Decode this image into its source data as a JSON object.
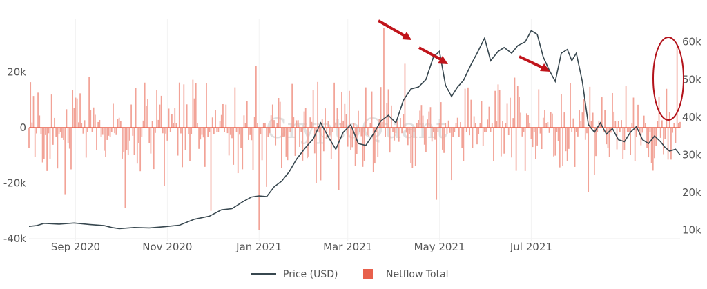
{
  "watermark": "CryptoQuant",
  "chart_data": {
    "type": "line",
    "title": "",
    "xlabel": "",
    "ylabel": "",
    "x_ticks": [
      "Sep 2020",
      "Nov 2020",
      "Jan 2021",
      "Mar 2021",
      "May 2021",
      "Jul 2021"
    ],
    "left_axis": {
      "ticks": [
        "20k",
        "0",
        "-20k",
        "-40k"
      ],
      "ylim": [
        -41000,
        39000
      ]
    },
    "right_axis": {
      "ticks": [
        "60k",
        "50k",
        "40k",
        "30k",
        "20k",
        "10k"
      ],
      "ylim": [
        7000,
        66000
      ]
    },
    "grid": true,
    "legend_position": "bottom-center",
    "colors": {
      "price": "#37474f",
      "netflow": "#f2a397",
      "netflow_legend": "#e8604c",
      "annotation": "#c0141b"
    },
    "series": [
      {
        "name": "Price (USD)",
        "type": "line",
        "axis": "right",
        "values": [
          [
            0,
            11000
          ],
          [
            5,
            11200
          ],
          [
            10,
            11800
          ],
          [
            20,
            11600
          ],
          [
            30,
            11900
          ],
          [
            40,
            11500
          ],
          [
            50,
            11200
          ],
          [
            55,
            10700
          ],
          [
            60,
            10400
          ],
          [
            70,
            10700
          ],
          [
            80,
            10600
          ],
          [
            90,
            10900
          ],
          [
            100,
            11300
          ],
          [
            110,
            12900
          ],
          [
            120,
            13700
          ],
          [
            128,
            15400
          ],
          [
            135,
            15700
          ],
          [
            142,
            17500
          ],
          [
            148,
            18800
          ],
          [
            153,
            19100
          ],
          [
            158,
            18900
          ],
          [
            163,
            21500
          ],
          [
            168,
            23000
          ],
          [
            173,
            25500
          ],
          [
            178,
            28900
          ],
          [
            184,
            32000
          ],
          [
            189,
            34200
          ],
          [
            194,
            38500
          ],
          [
            199,
            34800
          ],
          [
            204,
            31500
          ],
          [
            209,
            36000
          ],
          [
            214,
            38000
          ],
          [
            219,
            33000
          ],
          [
            224,
            32500
          ],
          [
            229,
            35500
          ],
          [
            234,
            39000
          ],
          [
            239,
            40500
          ],
          [
            244,
            38500
          ],
          [
            249,
            44500
          ],
          [
            254,
            47500
          ],
          [
            259,
            48000
          ],
          [
            264,
            50000
          ],
          [
            269,
            56000
          ],
          [
            273,
            57500
          ],
          [
            277,
            48500
          ],
          [
            281,
            45500
          ],
          [
            285,
            48000
          ],
          [
            289,
            49800
          ],
          [
            294,
            54000
          ],
          [
            298,
            57000
          ],
          [
            303,
            61000
          ],
          [
            307,
            55000
          ],
          [
            312,
            57500
          ],
          [
            316,
            58500
          ],
          [
            321,
            57000
          ],
          [
            325,
            59000
          ],
          [
            330,
            60000
          ],
          [
            334,
            63000
          ],
          [
            338,
            62000
          ],
          [
            342,
            56000
          ],
          [
            346,
            52500
          ],
          [
            350,
            49500
          ],
          [
            354,
            57000
          ],
          [
            358,
            58000
          ],
          [
            361,
            55000
          ],
          [
            364,
            57000
          ],
          [
            368,
            49500
          ],
          [
            372,
            38000
          ],
          [
            376,
            36000
          ],
          [
            380,
            38500
          ],
          [
            384,
            35500
          ],
          [
            388,
            37000
          ],
          [
            392,
            34000
          ],
          [
            396,
            33500
          ],
          [
            400,
            36000
          ],
          [
            404,
            37500
          ],
          [
            408,
            34000
          ],
          [
            412,
            33000
          ],
          [
            416,
            35000
          ],
          [
            420,
            33500
          ],
          [
            423,
            32000
          ],
          [
            426,
            31000
          ],
          [
            430,
            31500
          ],
          [
            433,
            30000
          ]
        ]
      },
      {
        "name": "Netflow Total",
        "type": "bar",
        "axis": "left",
        "peaks": [
          [
            24,
            -24000
          ],
          [
            64,
            -29000
          ],
          [
            90,
            -21000
          ],
          [
            121,
            -30000
          ],
          [
            142,
            -15000
          ],
          [
            153,
            -37000
          ],
          [
            191,
            -20000
          ],
          [
            194,
            -19000
          ],
          [
            236,
            36000
          ],
          [
            250,
            23000
          ],
          [
            271,
            -26000
          ],
          [
            290,
            14000
          ],
          [
            323,
            18000
          ],
          [
            360,
            16000
          ],
          [
            376,
            -17000
          ],
          [
            403,
            -12000
          ],
          [
            416,
            -11000
          ],
          [
            431,
            29000
          ]
        ]
      }
    ]
  },
  "legend": [
    {
      "label": "Price (USD)"
    },
    {
      "label": "Netflow Total"
    }
  ]
}
